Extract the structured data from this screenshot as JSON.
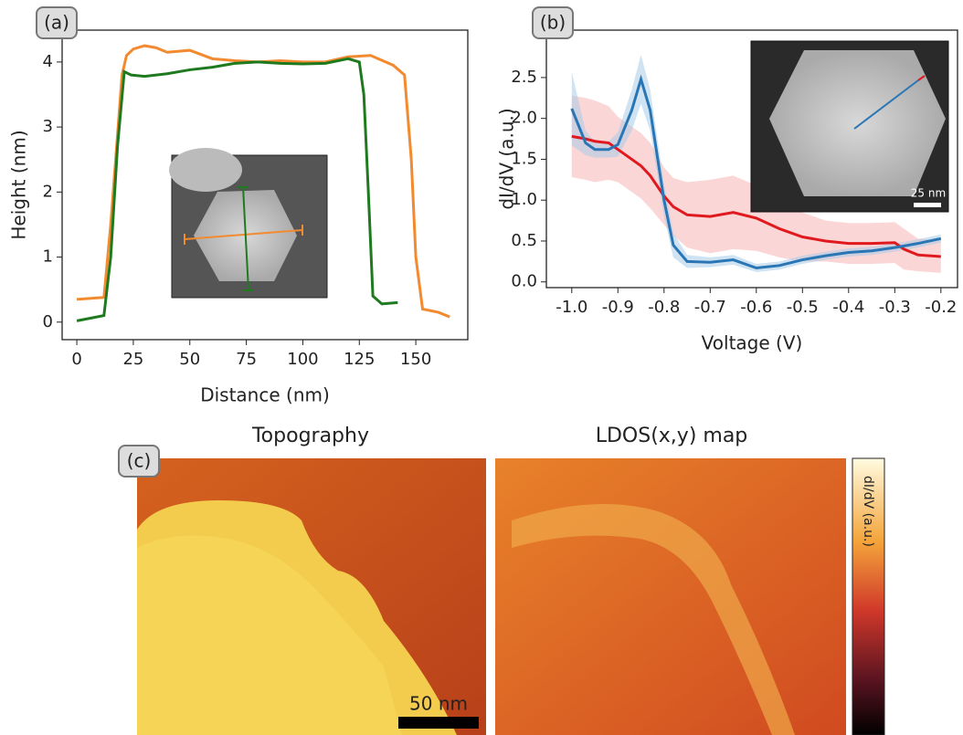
{
  "chart_data": [
    {
      "type": "line",
      "panel_label": "(a)",
      "x_label": "Distance (nm)",
      "y_label": "Height (nm)",
      "xlim": [
        -6.5,
        173
      ],
      "ylim": [
        -0.27,
        4.49
      ],
      "xticks": [
        0,
        25,
        50,
        75,
        100,
        125,
        150
      ],
      "yticks": [
        0,
        1,
        2,
        3,
        4
      ],
      "series": [
        {
          "color": "#f28a30",
          "x": [
            0,
            12,
            15,
            20,
            22,
            25,
            30,
            35,
            40,
            50,
            60,
            70,
            80,
            90,
            100,
            110,
            120,
            130,
            140,
            145,
            148,
            150,
            153,
            160,
            165
          ],
          "values": [
            0.35,
            0.38,
            1.5,
            3.8,
            4.1,
            4.2,
            4.25,
            4.22,
            4.15,
            4.18,
            4.05,
            4.02,
            4.0,
            4.02,
            4.0,
            4.0,
            4.08,
            4.1,
            3.95,
            3.8,
            2.5,
            1.0,
            0.2,
            0.15,
            0.08
          ]
        },
        {
          "color": "#1f7a1f",
          "x": [
            0,
            12,
            15,
            18,
            21,
            24,
            30,
            40,
            50,
            60,
            70,
            80,
            90,
            100,
            110,
            120,
            125,
            127,
            129,
            131,
            135,
            142
          ],
          "values": [
            0.02,
            0.1,
            1.0,
            2.7,
            3.85,
            3.8,
            3.78,
            3.82,
            3.88,
            3.92,
            3.98,
            4.0,
            3.98,
            3.97,
            3.98,
            4.05,
            4.0,
            3.5,
            2.0,
            0.4,
            0.28,
            0.3
          ]
        }
      ]
    },
    {
      "type": "line",
      "panel_label": "(b)",
      "x_label": "Voltage (V)",
      "y_label": "dI/dV (a.u.)",
      "inset_scale_label": "25 nm",
      "xlim": [
        -1.055,
        -0.164
      ],
      "ylim": [
        -0.07,
        3.08
      ],
      "xticks": [
        {
          "value": -1.0,
          "label": "-1.0"
        },
        -0.9,
        -0.8,
        -0.7,
        -0.6,
        -0.5,
        -0.4,
        -0.3,
        -0.2
      ],
      "yticks": [
        {
          "value": 0,
          "label": "0.0"
        },
        0.5,
        {
          "value": 1,
          "label": "1.0"
        },
        1.5,
        {
          "value": 2,
          "label": "2.0"
        },
        2.5
      ],
      "x": [
        -1.0,
        -0.97,
        -0.95,
        -0.92,
        -0.9,
        -0.87,
        -0.85,
        -0.83,
        -0.8,
        -0.78,
        -0.75,
        -0.7,
        -0.65,
        -0.6,
        -0.55,
        -0.5,
        -0.45,
        -0.4,
        -0.35,
        -0.3,
        -0.28,
        -0.25,
        -0.2
      ],
      "series": [
        {
          "color": "#e0191f",
          "band_color": "#f7b5b5",
          "values": [
            1.78,
            1.75,
            1.72,
            1.7,
            1.62,
            1.5,
            1.42,
            1.3,
            1.05,
            0.92,
            0.82,
            0.8,
            0.85,
            0.78,
            0.65,
            0.55,
            0.5,
            0.47,
            0.47,
            0.48,
            0.4,
            0.33,
            0.31
          ],
          "errors": [
            0.5,
            0.5,
            0.5,
            0.45,
            0.4,
            0.4,
            0.4,
            0.4,
            0.35,
            0.35,
            0.4,
            0.45,
            0.45,
            0.4,
            0.35,
            0.3,
            0.25,
            0.25,
            0.25,
            0.25,
            0.25,
            0.2,
            0.2
          ]
        },
        {
          "color": "#2a76b5",
          "band_color": "#a9cce8",
          "values": [
            2.12,
            1.7,
            1.62,
            1.62,
            1.68,
            2.1,
            2.48,
            2.1,
            1.0,
            0.45,
            0.25,
            0.24,
            0.27,
            0.17,
            0.2,
            0.27,
            0.32,
            0.36,
            0.38,
            0.42,
            0.44,
            0.47,
            0.53
          ],
          "errors": [
            0.45,
            0.15,
            0.1,
            0.1,
            0.15,
            0.25,
            0.3,
            0.25,
            0.2,
            0.15,
            0.08,
            0.06,
            0.06,
            0.05,
            0.05,
            0.05,
            0.05,
            0.05,
            0.05,
            0.05,
            0.05,
            0.05,
            0.05
          ]
        }
      ]
    }
  ],
  "panel_c": {
    "panel_label": "(c)",
    "left_title": "Topography",
    "right_title": "LDOS(x,y) map",
    "scale_label": "50 nm",
    "colorbar_label": "dI/dV (a.u.)"
  }
}
